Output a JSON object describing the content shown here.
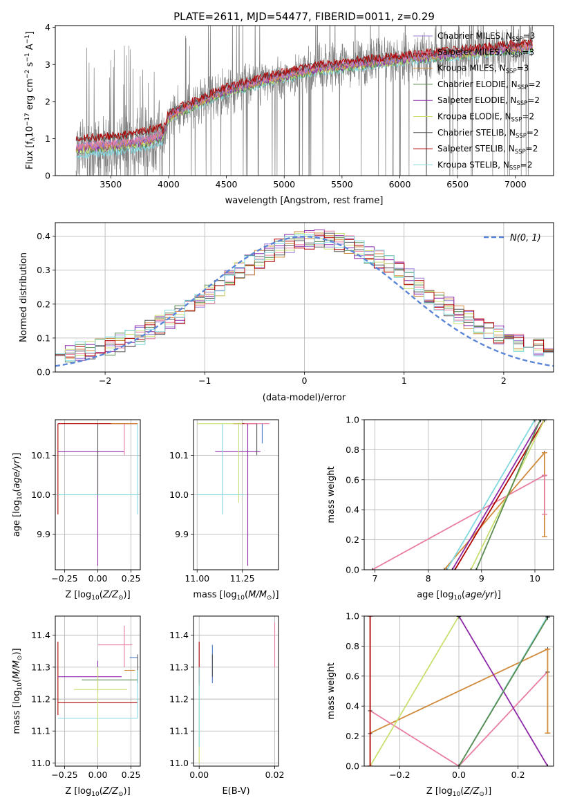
{
  "figure": {
    "title": "PLATE=2611, MJD=54477, FIBERID=0011, z=0.29"
  },
  "colors": {
    "Chabrier MILES": "#9a7bd8",
    "Salpeter MILES": "#e87fa0",
    "Kroupa MILES": "#d08a3c",
    "Chabrier ELODIE": "#5a8a50",
    "Salpeter ELODIE": "#8e2aa8",
    "Kroupa ELODIE": "#c8e070",
    "Chabrier STELIB": "#555555",
    "Salpeter STELIB": "#b00000",
    "Kroupa STELIB": "#80d8e0",
    "data_gray": "#808080",
    "normal": "#5b85d6",
    "wmiles_blue": "#4a7ac8"
  },
  "chart_data": [
    {
      "id": "spectrum",
      "type": "line",
      "xlabel": "wavelength [Angstrom, rest frame]",
      "ylabel": "Flux [f_λ 10^-17 erg cm^-2 s^-1 A^-1]",
      "xlim": [
        3020,
        7330
      ],
      "ylim": [
        0,
        4.05
      ],
      "xticks": [
        3500,
        4000,
        4500,
        5000,
        5500,
        6000,
        6500,
        7000
      ],
      "yticks": [
        0,
        1,
        2,
        3,
        4
      ],
      "legend_position": "top-right",
      "legend": [
        {
          "name": "Chabrier MILES",
          "sub": "SSP",
          "n": 3
        },
        {
          "name": "Salpeter MILES",
          "sub": "SSP",
          "n": 3
        },
        {
          "name": "Kroupa MILES",
          "sub": "SSP",
          "n": 3
        },
        {
          "name": "Chabrier ELODIE",
          "sub": "SSP",
          "n": 2
        },
        {
          "name": "Salpeter ELODIE",
          "sub": "SSP",
          "n": 2
        },
        {
          "name": "Kroupa ELODIE",
          "sub": "SSP",
          "n": 2
        },
        {
          "name": "Chabrier STELIB",
          "sub": "SSP",
          "n": 2
        },
        {
          "name": "Salpeter STELIB",
          "sub": "SSP",
          "n": 2
        },
        {
          "name": "Kroupa STELIB",
          "sub": "SSP",
          "n": 2
        }
      ],
      "model_trend": [
        [
          3200,
          0.75
        ],
        [
          3400,
          0.8
        ],
        [
          3600,
          0.85
        ],
        [
          3800,
          0.95
        ],
        [
          3950,
          1.1
        ],
        [
          4000,
          1.6
        ],
        [
          4200,
          1.9
        ],
        [
          4500,
          2.3
        ],
        [
          4800,
          2.55
        ],
        [
          5000,
          2.7
        ],
        [
          5300,
          2.9
        ],
        [
          5600,
          3.0
        ],
        [
          6000,
          3.15
        ],
        [
          6500,
          3.3
        ],
        [
          7000,
          3.45
        ],
        [
          7150,
          3.5
        ]
      ]
    },
    {
      "id": "residuals",
      "type": "line",
      "xlabel": "(data-model)/error",
      "ylabel": "Normed distribution",
      "xlim": [
        -2.5,
        2.5
      ],
      "ylim": [
        0,
        0.44
      ],
      "xticks": [
        -2,
        -1,
        0,
        1,
        2
      ],
      "yticks": [
        0.0,
        0.1,
        0.2,
        0.3,
        0.4
      ],
      "grid": true,
      "legend_position": "top-right",
      "normal_label": "N(0, 1)",
      "bin_width": 0.1
    },
    {
      "id": "age_vs_Z",
      "type": "scatter",
      "xlabel": "Z [log10(Z/Z⊙)]",
      "ylabel": "age [log10(age/yr)]",
      "xlim": [
        -0.32,
        0.32
      ],
      "ylim": [
        9.81,
        10.19
      ],
      "xticks": [
        -0.25,
        0.0,
        0.25
      ],
      "yticks": [
        9.9,
        10.0,
        10.1
      ],
      "grid": true,
      "segments": [
        {
          "c": "Salpeter STELIB",
          "x": [
            -0.3,
            0.3
          ],
          "y": [
            10.18,
            10.18
          ]
        },
        {
          "c": "Salpeter STELIB",
          "x": [
            -0.3,
            -0.3
          ],
          "y": [
            9.95,
            10.18
          ]
        },
        {
          "c": "Kroupa MILES",
          "x": [
            0.1,
            0.3
          ],
          "y": [
            10.18,
            10.18
          ]
        },
        {
          "c": "Salpeter ELODIE",
          "x": [
            -0.3,
            0.2
          ],
          "y": [
            10.11,
            10.11
          ]
        },
        {
          "c": "Salpeter ELODIE",
          "x": [
            0.0,
            0.0
          ],
          "y": [
            9.82,
            10.11
          ]
        },
        {
          "c": "Kroupa STELIB",
          "x": [
            -0.3,
            0.3
          ],
          "y": [
            10.0,
            10.0
          ]
        },
        {
          "c": "Kroupa STELIB",
          "x": [
            0.3,
            0.3
          ],
          "y": [
            9.95,
            10.18
          ]
        },
        {
          "c": "Salpeter MILES",
          "x": [
            0.2,
            0.2
          ],
          "y": [
            10.1,
            10.18
          ]
        },
        {
          "c": "Chabrier STELIB",
          "x": [
            0.0,
            0.0
          ],
          "y": [
            10.0,
            10.18
          ]
        }
      ]
    },
    {
      "id": "age_vs_mass",
      "type": "scatter",
      "xlabel": "mass [log10(M/M⊙)]",
      "xlim": [
        10.98,
        11.45
      ],
      "ylim": [
        9.81,
        10.19
      ],
      "xticks": [
        11.0,
        11.25
      ],
      "yticks": [
        9.9,
        10.0,
        10.1
      ],
      "grid": true,
      "segments": [
        {
          "c": "Salpeter STELIB",
          "x": [
            11.2,
            11.33
          ],
          "y": [
            10.18,
            10.18
          ]
        },
        {
          "c": "Salpeter MILES",
          "x": [
            11.26,
            11.4
          ],
          "y": [
            10.18,
            10.18
          ]
        },
        {
          "c": "Kroupa ELODIE",
          "x": [
            11.0,
            11.25
          ],
          "y": [
            10.18,
            10.18
          ]
        },
        {
          "c": "Salpeter ELODIE",
          "x": [
            11.1,
            11.35
          ],
          "y": [
            10.11,
            10.11
          ]
        },
        {
          "c": "Salpeter ELODIE",
          "x": [
            11.28,
            11.28
          ],
          "y": [
            9.82,
            10.18
          ]
        },
        {
          "c": "Kroupa STELIB",
          "x": [
            11.0,
            11.26
          ],
          "y": [
            10.0,
            10.0
          ]
        },
        {
          "c": "Kroupa STELIB",
          "x": [
            11.14,
            11.14
          ],
          "y": [
            9.95,
            10.18
          ]
        },
        {
          "c": "Kroupa ELODIE",
          "x": [
            11.23,
            11.23
          ],
          "y": [
            9.98,
            10.18
          ]
        },
        {
          "c": "Chabrier STELIB",
          "x": [
            11.33,
            11.33
          ],
          "y": [
            10.1,
            10.18
          ]
        },
        {
          "c": "wmiles_blue",
          "x": [
            11.36,
            11.36
          ],
          "y": [
            10.13,
            10.18
          ]
        }
      ]
    },
    {
      "id": "weight_vs_age",
      "type": "line",
      "xlabel": "age [log10(age/yr)]",
      "ylabel": "mass weight",
      "xlim": [
        6.8,
        10.35
      ],
      "ylim": [
        0.0,
        1.0
      ],
      "xticks": [
        7,
        8,
        9,
        10
      ],
      "yticks": [
        0.0,
        0.2,
        0.4,
        0.6,
        0.8,
        1.0
      ],
      "grid": true,
      "lines": [
        {
          "c": "Salpeter MILES",
          "x": [
            6.95,
            10.18
          ],
          "y": [
            0.0,
            0.63
          ]
        },
        {
          "c": "Kroupa MILES",
          "x": [
            8.3,
            10.18
          ],
          "y": [
            0.0,
            0.78
          ]
        },
        {
          "c": "Kroupa STELIB",
          "x": [
            8.35,
            10.0
          ],
          "y": [
            0.0,
            1.0
          ]
        },
        {
          "c": "Salpeter STELIB",
          "x": [
            8.5,
            10.18
          ],
          "y": [
            0.0,
            1.0
          ]
        },
        {
          "c": "Salpeter ELODIE",
          "x": [
            8.45,
            10.11
          ],
          "y": [
            0.0,
            1.0
          ]
        },
        {
          "c": "Kroupa ELODIE",
          "x": [
            8.8,
            10.18
          ],
          "y": [
            0.0,
            1.0
          ]
        },
        {
          "c": "Chabrier ELODIE",
          "x": [
            8.9,
            10.1
          ],
          "y": [
            0.0,
            1.0
          ]
        }
      ],
      "errorbars": [
        {
          "c": "Kroupa MILES",
          "x": 10.18,
          "y": [
            0.22,
            0.78
          ]
        },
        {
          "c": "Salpeter MILES",
          "x": 10.18,
          "y": [
            0.37,
            0.63
          ]
        }
      ]
    },
    {
      "id": "mass_vs_Z",
      "type": "scatter",
      "xlabel": "Z [log10(Z/Z⊙)]",
      "ylabel": "mass [log10(M/M⊙)]",
      "xlim": [
        -0.32,
        0.32
      ],
      "ylim": [
        10.99,
        11.46
      ],
      "xticks": [
        -0.25,
        0.0,
        0.25
      ],
      "yticks": [
        11.0,
        11.1,
        11.2,
        11.3,
        11.4
      ],
      "grid": true,
      "segments": [
        {
          "c": "Salpeter STELIB",
          "x": [
            -0.3,
            0.3
          ],
          "y": [
            11.19,
            11.19
          ]
        },
        {
          "c": "Salpeter STELIB",
          "x": [
            -0.3,
            -0.3
          ],
          "y": [
            11.15,
            11.38
          ]
        },
        {
          "c": "Kroupa STELIB",
          "x": [
            -0.3,
            0.3
          ],
          "y": [
            11.14,
            11.14
          ]
        },
        {
          "c": "Salpeter ELODIE",
          "x": [
            -0.3,
            0.18
          ],
          "y": [
            11.27,
            11.27
          ]
        },
        {
          "c": "Salpeter ELODIE",
          "x": [
            0.0,
            0.0
          ],
          "y": [
            11.22,
            11.32
          ]
        },
        {
          "c": "Chabrier ELODIE",
          "x": [
            -0.12,
            0.3
          ],
          "y": [
            11.26,
            11.26
          ]
        },
        {
          "c": "Kroupa ELODIE",
          "x": [
            -0.18,
            0.22
          ],
          "y": [
            11.23,
            11.23
          ]
        },
        {
          "c": "Kroupa ELODIE",
          "x": [
            0.0,
            0.0
          ],
          "y": [
            11.05,
            11.3
          ]
        },
        {
          "c": "Salpeter MILES",
          "x": [
            0.0,
            0.26
          ],
          "y": [
            11.37,
            11.37
          ]
        },
        {
          "c": "Salpeter MILES",
          "x": [
            0.2,
            0.2
          ],
          "y": [
            11.3,
            11.43
          ]
        },
        {
          "c": "Kroupa MILES",
          "x": [
            0.2,
            0.28
          ],
          "y": [
            11.29,
            11.29
          ]
        },
        {
          "c": "wmiles_blue",
          "x": [
            0.24,
            0.3
          ],
          "y": [
            11.33,
            11.33
          ]
        },
        {
          "c": "Chabrier STELIB",
          "x": [
            0.3,
            0.3
          ],
          "y": [
            11.25,
            11.34
          ]
        },
        {
          "c": "Kroupa STELIB",
          "x": [
            0.3,
            0.3
          ],
          "y": [
            11.14,
            11.29
          ]
        }
      ]
    },
    {
      "id": "mass_vs_ebv",
      "type": "scatter",
      "xlabel": "E(B-V)",
      "xlim": [
        -0.0015,
        0.021
      ],
      "ylim": [
        10.99,
        11.46
      ],
      "xticks": [
        0.0,
        0.02
      ],
      "yticks": [
        11.0,
        11.1,
        11.2,
        11.3,
        11.4
      ],
      "grid": true,
      "segments": [
        {
          "c": "Salpeter STELIB",
          "x": [
            0.0,
            0.0
          ],
          "y": [
            11.24,
            11.38
          ]
        },
        {
          "c": "Kroupa ELODIE",
          "x": [
            0.0,
            0.0
          ],
          "y": [
            11.0,
            11.25
          ]
        },
        {
          "c": "Kroupa STELIB",
          "x": [
            0.0,
            0.0
          ],
          "y": [
            11.05,
            11.3
          ]
        },
        {
          "c": "wmiles_blue",
          "x": [
            0.0035,
            0.0035
          ],
          "y": [
            11.25,
            11.37
          ]
        },
        {
          "c": "Chabrier STELIB",
          "x": [
            0.0035,
            0.0035
          ],
          "y": [
            11.27,
            11.34
          ]
        },
        {
          "c": "Salpeter MILES",
          "x": [
            0.02,
            0.02
          ],
          "y": [
            11.3,
            11.44
          ]
        }
      ]
    },
    {
      "id": "weight_vs_Z",
      "type": "line",
      "xlabel": "Z [log10(Z/Z⊙)]",
      "ylabel": "mass weight",
      "xlim": [
        -0.32,
        0.32
      ],
      "ylim": [
        0.0,
        1.0
      ],
      "xticks": [
        -0.2,
        0.0,
        0.2
      ],
      "yticks": [
        0.0,
        0.2,
        0.4,
        0.6,
        0.8,
        1.0
      ],
      "grid": true,
      "lines": [
        {
          "c": "Kroupa MILES",
          "x": [
            -0.3,
            0.3
          ],
          "y": [
            0.22,
            0.78
          ]
        },
        {
          "c": "Salpeter MILES",
          "x": [
            -0.3,
            0.0
          ],
          "y": [
            0.37,
            0.0
          ]
        },
        {
          "c": "Salpeter MILES",
          "x": [
            0.0,
            0.3
          ],
          "y": [
            0.0,
            0.63
          ]
        },
        {
          "c": "Kroupa ELODIE",
          "x": [
            -0.3,
            0.0
          ],
          "y": [
            0.0,
            1.0
          ]
        },
        {
          "c": "Salpeter ELODIE",
          "x": [
            0.0,
            0.3
          ],
          "y": [
            1.0,
            0.0
          ]
        },
        {
          "c": "Kroupa STELIB",
          "x": [
            0.0,
            0.3
          ],
          "y": [
            0.0,
            1.0
          ]
        },
        {
          "c": "Chabrier ELODIE",
          "x": [
            0.0,
            0.3
          ],
          "y": [
            0.0,
            0.99
          ]
        }
      ],
      "verticals": [
        {
          "c": "Salpeter STELIB",
          "x": -0.3,
          "y": [
            0.0,
            1.0
          ]
        },
        {
          "c": "Kroupa MILES",
          "x": 0.3,
          "y": [
            0.22,
            0.78
          ]
        }
      ]
    }
  ]
}
